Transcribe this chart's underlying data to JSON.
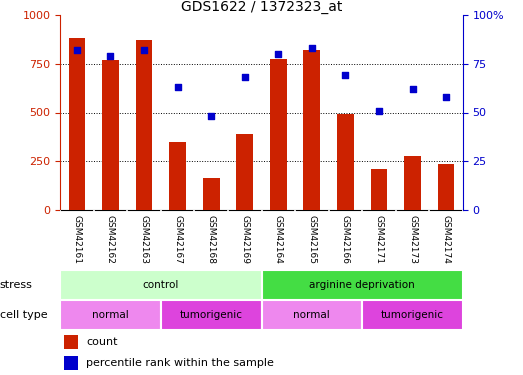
{
  "title": "GDS1622 / 1372323_at",
  "samples": [
    "GSM42161",
    "GSM42162",
    "GSM42163",
    "GSM42167",
    "GSM42168",
    "GSM42169",
    "GSM42164",
    "GSM42165",
    "GSM42166",
    "GSM42171",
    "GSM42173",
    "GSM42174"
  ],
  "counts": [
    880,
    770,
    870,
    350,
    165,
    390,
    775,
    820,
    490,
    210,
    275,
    235
  ],
  "percentiles": [
    82,
    79,
    82,
    63,
    48,
    68,
    80,
    83,
    69,
    51,
    62,
    58
  ],
  "bar_color": "#cc2200",
  "dot_color": "#0000cc",
  "left_ylim": [
    0,
    1000
  ],
  "right_ylim": [
    0,
    100
  ],
  "left_yticks": [
    0,
    250,
    500,
    750,
    1000
  ],
  "right_yticks": [
    0,
    25,
    50,
    75,
    100
  ],
  "left_yticklabels": [
    "0",
    "250",
    "500",
    "750",
    "1000"
  ],
  "right_yticklabels": [
    "0",
    "25",
    "50",
    "75",
    "100%"
  ],
  "grid_values": [
    250,
    500,
    750
  ],
  "stress_groups": [
    {
      "label": "control",
      "start": 0,
      "end": 6,
      "color": "#ccffcc"
    },
    {
      "label": "arginine deprivation",
      "start": 6,
      "end": 12,
      "color": "#44dd44"
    }
  ],
  "cell_type_groups": [
    {
      "label": "normal",
      "start": 0,
      "end": 3,
      "color": "#ee88ee"
    },
    {
      "label": "tumorigenic",
      "start": 3,
      "end": 6,
      "color": "#dd44dd"
    },
    {
      "label": "normal",
      "start": 6,
      "end": 9,
      "color": "#ee88ee"
    },
    {
      "label": "tumorigenic",
      "start": 9,
      "end": 12,
      "color": "#dd44dd"
    }
  ],
  "legend_count_label": "count",
  "legend_pct_label": "percentile rank within the sample",
  "stress_label": "stress",
  "cell_type_label": "cell type",
  "bg_color": "#ffffff",
  "plot_bg_color": "#ffffff",
  "sample_bg_color": "#cccccc",
  "bar_width": 0.5,
  "title_fontsize": 10
}
